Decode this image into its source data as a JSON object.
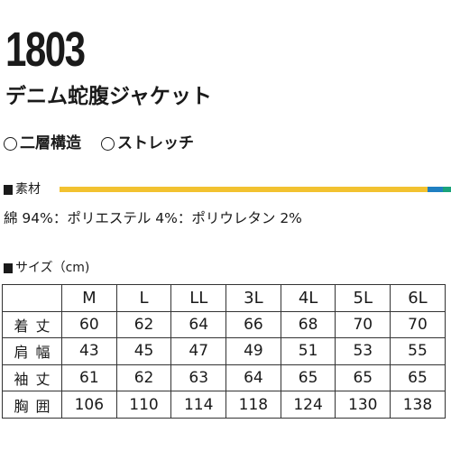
{
  "product": {
    "code": "1803",
    "name": "デニム蛇腹ジャケット"
  },
  "features": [
    {
      "icon": "circle-icon",
      "label": "二層構造"
    },
    {
      "icon": "circle-icon",
      "label": "ストレッチ"
    }
  ],
  "material": {
    "label": "素材",
    "composition": "綿 94%：ポリエステル 4%：ポリウレタン 2%",
    "bar": [
      {
        "label": "綿",
        "percent": 94,
        "color": "#f2c230"
      },
      {
        "label": "ポリエステル",
        "percent": 4,
        "color": "#1f7fc1"
      },
      {
        "label": "ポリウレタン",
        "percent": 2,
        "color": "#1aa37a"
      }
    ]
  },
  "size_chart": {
    "label": "サイズ（cm)",
    "sizes": [
      "M",
      "L",
      "LL",
      "3L",
      "4L",
      "5L",
      "6L"
    ],
    "rows": [
      {
        "label": "着丈",
        "values": [
          "60",
          "62",
          "64",
          "66",
          "68",
          "70",
          "70"
        ]
      },
      {
        "label": "肩幅",
        "values": [
          "43",
          "45",
          "47",
          "49",
          "51",
          "53",
          "55"
        ]
      },
      {
        "label": "袖丈",
        "values": [
          "61",
          "62",
          "63",
          "64",
          "65",
          "65",
          "65"
        ]
      },
      {
        "label": "胸囲",
        "values": [
          "106",
          "110",
          "114",
          "118",
          "124",
          "130",
          "138"
        ]
      }
    ]
  }
}
